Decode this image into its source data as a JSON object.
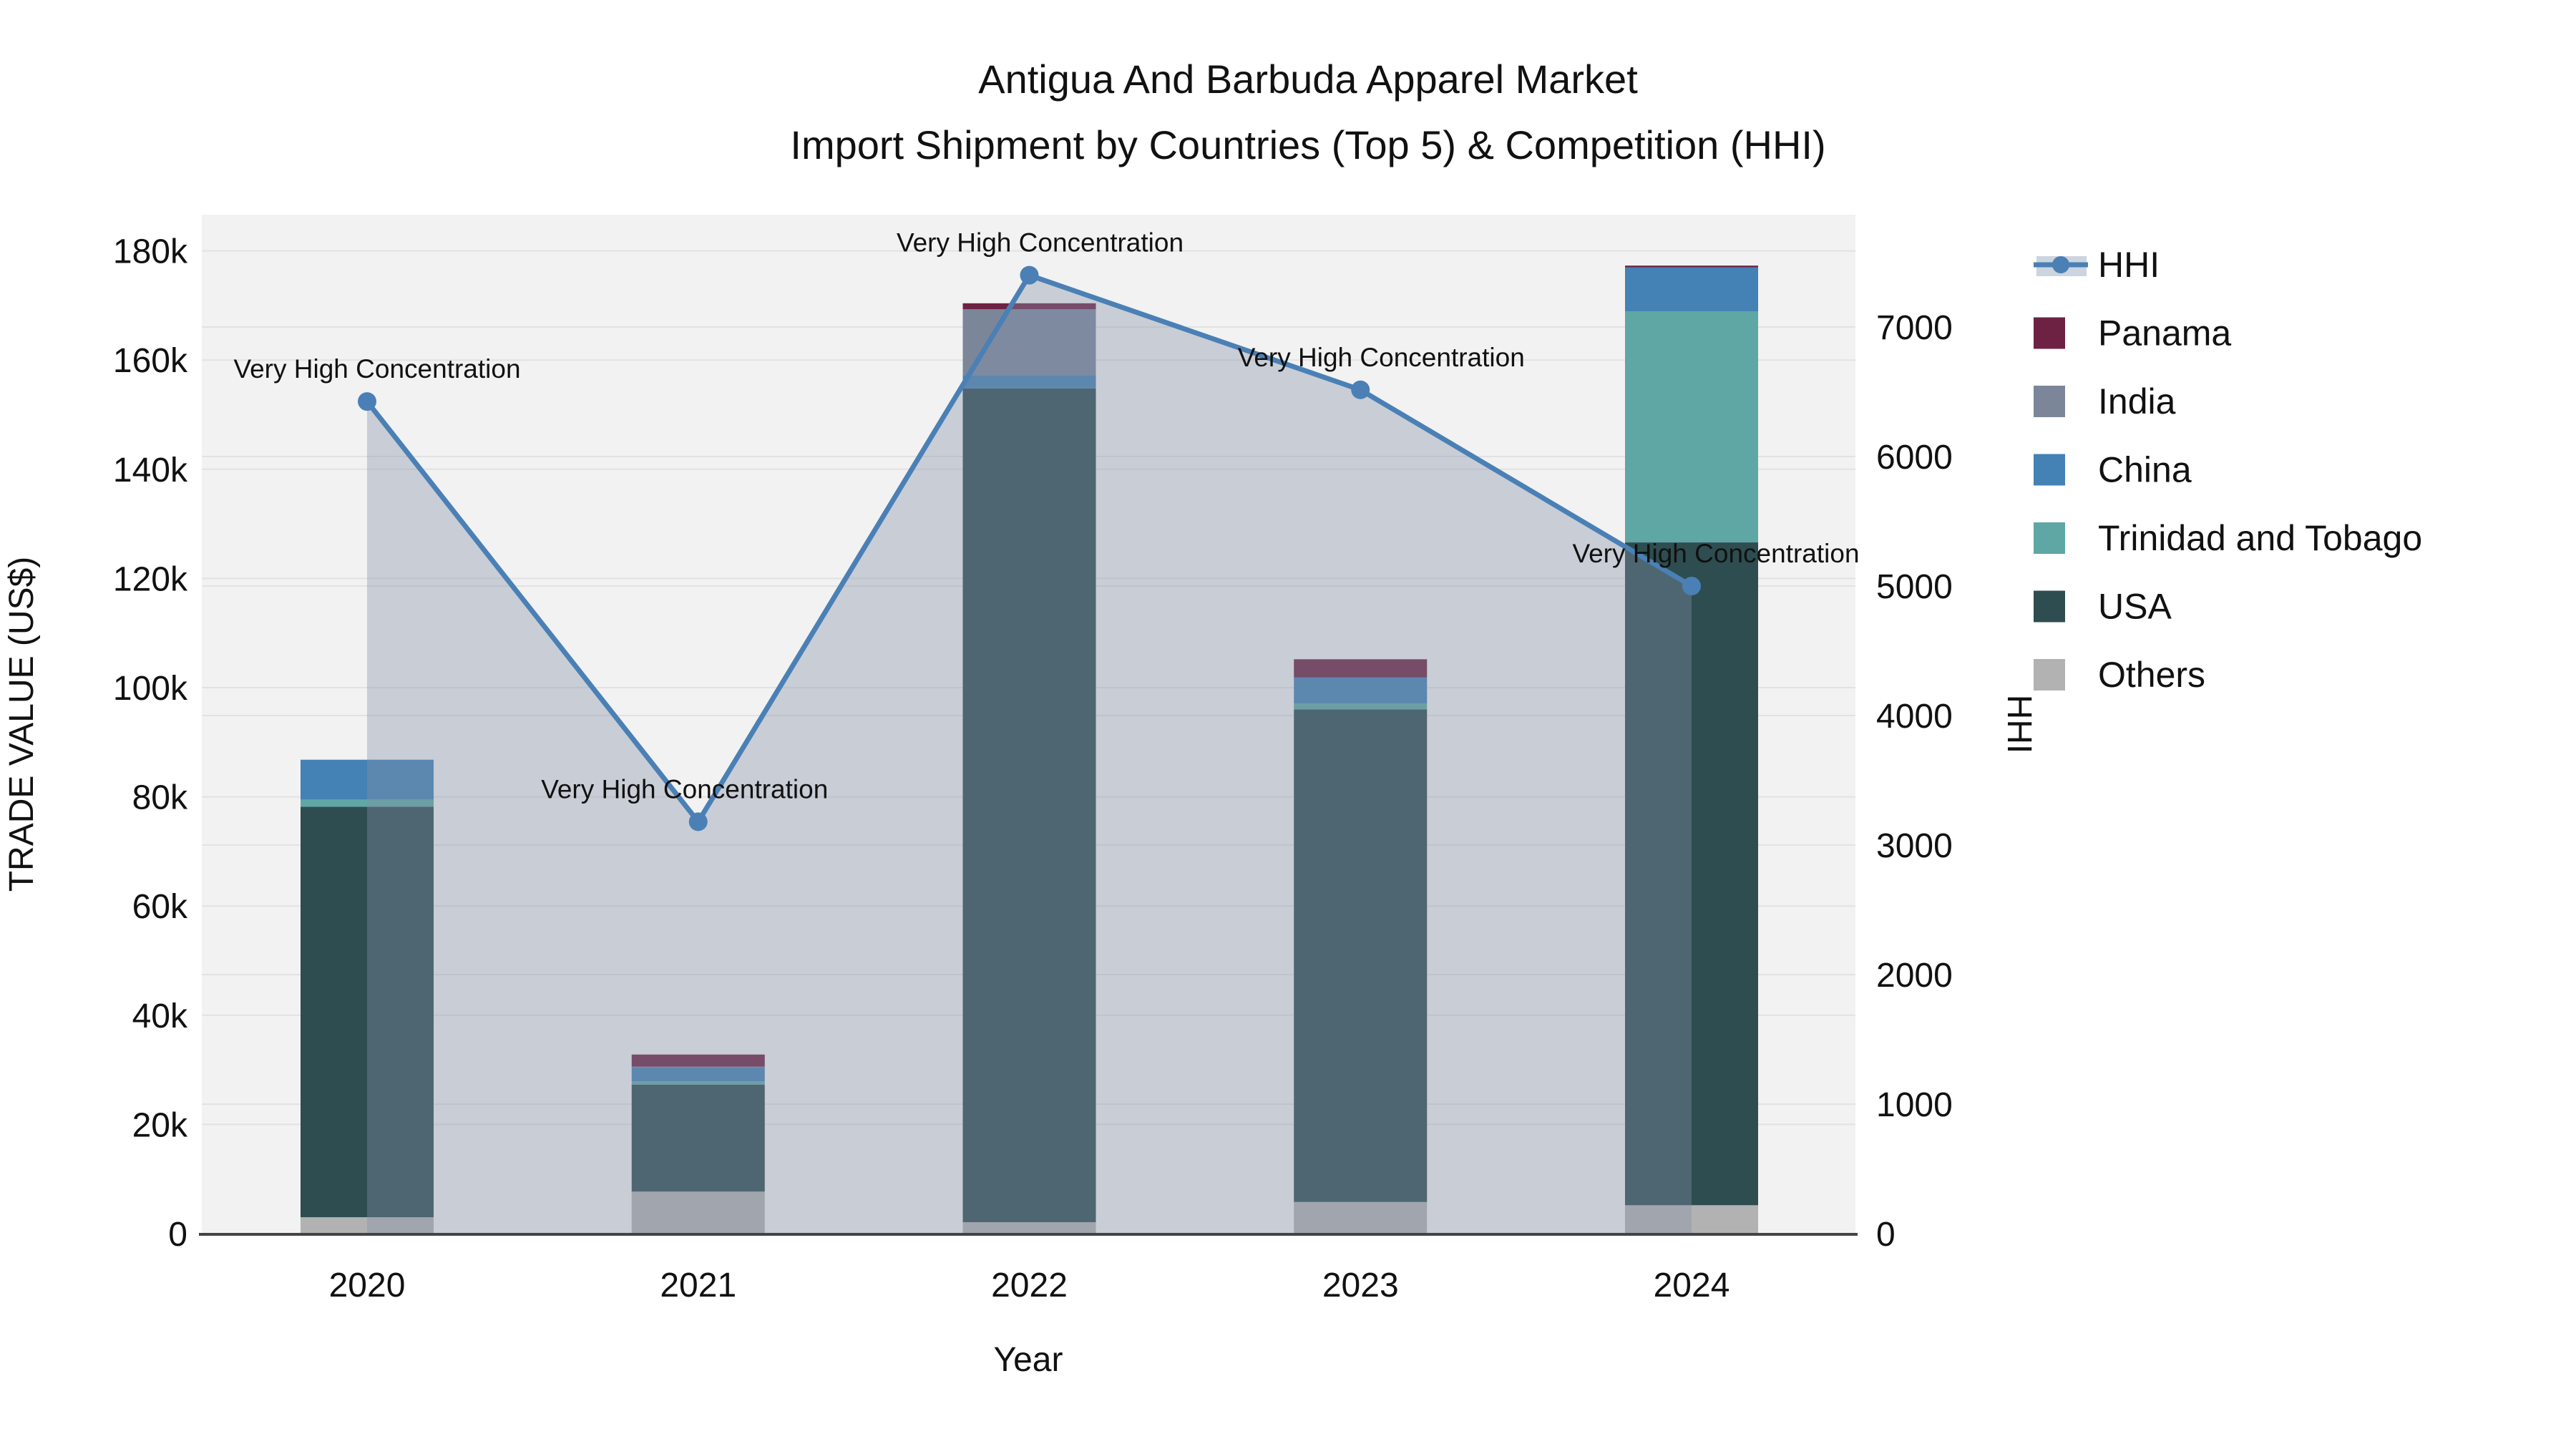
{
  "title": {
    "line1": "Antigua And Barbuda Apparel Market",
    "line2": "Import Shipment by Countries (Top 5) & Competition (HHI)"
  },
  "axes": {
    "x": {
      "title": "Year"
    },
    "y_left": {
      "title": "TRADE VALUE (US$)",
      "ticks": [
        {
          "value": 0,
          "label": "0"
        },
        {
          "value": 20000,
          "label": "20k"
        },
        {
          "value": 40000,
          "label": "40k"
        },
        {
          "value": 60000,
          "label": "60k"
        },
        {
          "value": 80000,
          "label": "80k"
        },
        {
          "value": 100000,
          "label": "100k"
        },
        {
          "value": 120000,
          "label": "120k"
        },
        {
          "value": 140000,
          "label": "140k"
        },
        {
          "value": 160000,
          "label": "160k"
        },
        {
          "value": 180000,
          "label": "180k"
        }
      ]
    },
    "y_right": {
      "title": "HHI",
      "ticks": [
        {
          "value": 0,
          "label": "0"
        },
        {
          "value": 1000,
          "label": "1000"
        },
        {
          "value": 2000,
          "label": "2000"
        },
        {
          "value": 3000,
          "label": "3000"
        },
        {
          "value": 4000,
          "label": "4000"
        },
        {
          "value": 5000,
          "label": "5000"
        },
        {
          "value": 6000,
          "label": "6000"
        },
        {
          "value": 7000,
          "label": "7000"
        }
      ]
    }
  },
  "legend": {
    "items": [
      {
        "label": "HHI",
        "type": "line",
        "color": "#4a80b5"
      },
      {
        "label": "Panama",
        "type": "square",
        "color": "#6e2243"
      },
      {
        "label": "India",
        "type": "square",
        "color": "#7b8699"
      },
      {
        "label": "China",
        "type": "square",
        "color": "#4481b4"
      },
      {
        "label": "Trinidad and Tobago",
        "type": "square",
        "color": "#5ea7a5"
      },
      {
        "label": "USA",
        "type": "square",
        "color": "#2e4d50"
      },
      {
        "label": "Others",
        "type": "square",
        "color": "#b2b2b2"
      }
    ]
  },
  "chart_data": {
    "type": "bar+line",
    "title": "Antigua And Barbuda Apparel Market — Import Shipment by Countries (Top 5) & Competition (HHI)",
    "categories": [
      "2020",
      "2021",
      "2022",
      "2023",
      "2024"
    ],
    "xlabel": "Year",
    "ylabel_left": "TRADE VALUE (US$)",
    "ylabel_right": "HHI",
    "ylim_left": [
      0,
      186600
    ],
    "ylim_right": [
      0,
      7870
    ],
    "grid": true,
    "legend_position": "right",
    "bar_stack_order_bottom_to_top": [
      "Others",
      "USA",
      "Trinidad and Tobago",
      "China",
      "India",
      "Panama"
    ],
    "series": [
      {
        "name": "Others",
        "color": "#b2b2b2",
        "values": [
          3000,
          7700,
          2100,
          5800,
          5200
        ]
      },
      {
        "name": "USA",
        "color": "#2e4d50",
        "values": [
          75200,
          19600,
          152700,
          90200,
          121400
        ]
      },
      {
        "name": "Trinidad and Tobago",
        "color": "#5ea7a5",
        "values": [
          1300,
          600,
          0,
          1100,
          42300
        ]
      },
      {
        "name": "China",
        "color": "#4481b4",
        "values": [
          7300,
          2500,
          2400,
          4800,
          8100
        ]
      },
      {
        "name": "India",
        "color": "#7b8699",
        "values": [
          0,
          200,
          12100,
          0,
          0
        ]
      },
      {
        "name": "Panama",
        "color": "#6e2243",
        "values": [
          0,
          2200,
          1100,
          3300,
          300
        ]
      }
    ],
    "line_series": {
      "name": "HHI",
      "axis": "right",
      "color": "#4a80b5",
      "area_fill": "rgba(131,145,168,0.38)",
      "values": [
        6425,
        3180,
        7400,
        6515,
        5000
      ]
    },
    "annotations": [
      {
        "text": "Very High Concentration",
        "category": "2020",
        "hhi": 6425
      },
      {
        "text": "Very High Concentration",
        "category": "2021",
        "hhi": 3180
      },
      {
        "text": "Very High Concentration",
        "category": "2022",
        "hhi": 7400
      },
      {
        "text": "Very High Concentration",
        "category": "2023",
        "hhi": 6515
      },
      {
        "text": "Very High Concentration",
        "category": "2024",
        "hhi": 5000
      }
    ]
  },
  "colors": {
    "plot_background": "#f2f2f2",
    "gridline": "#e2e2e2",
    "axis_line": "#444444",
    "text": "#111111",
    "hhi_line": "#4a80b5",
    "hhi_area": "rgba(131,145,168,0.38)",
    "legend_hhi_band": "#ccd4df"
  }
}
